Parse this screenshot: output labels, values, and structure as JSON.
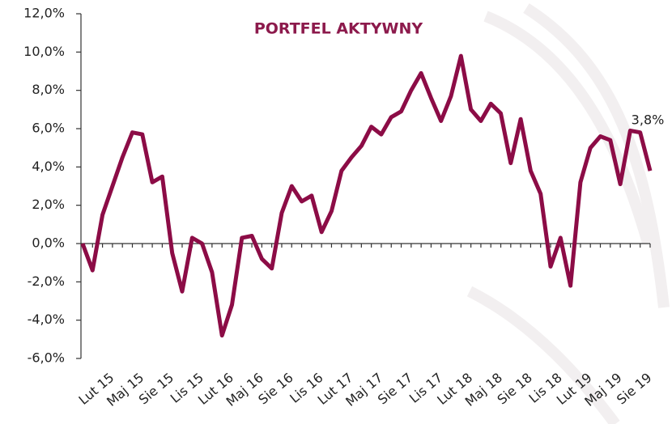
{
  "chart_data": {
    "type": "line",
    "title": "PORTFEL AKTYWNY",
    "categories": [
      null,
      null,
      null,
      "Lut 15",
      null,
      null,
      "Maj 15",
      null,
      null,
      "Sie 15",
      null,
      null,
      "Lis 15",
      null,
      null,
      "Lut 16",
      null,
      null,
      "Maj 16",
      null,
      null,
      "Sie 16",
      null,
      null,
      "Lis 16",
      null,
      null,
      "Lut 17",
      null,
      null,
      "Maj 17",
      null,
      null,
      "Sie 17",
      null,
      null,
      "Lis 17",
      null,
      null,
      "Lut 18",
      null,
      null,
      "Maj 18",
      null,
      null,
      "Sie 18",
      null,
      null,
      "Lis 18",
      null,
      null,
      "Lut 19",
      null,
      null,
      "Maj 19",
      null,
      null,
      "Sie 19"
    ],
    "series": [
      {
        "color": "#8c0c46",
        "values": [
          0.0,
          -1.4,
          1.5,
          3.0,
          4.5,
          5.8,
          5.7,
          3.2,
          3.5,
          -0.5,
          -2.5,
          0.3,
          0.0,
          -1.5,
          -4.8,
          -3.2,
          0.3,
          0.4,
          -0.8,
          -1.3,
          1.6,
          3.0,
          2.2,
          2.5,
          0.6,
          1.7,
          3.8,
          4.5,
          5.1,
          6.1,
          5.7,
          6.6,
          6.9,
          8.0,
          8.9,
          7.6,
          6.4,
          7.7,
          9.8,
          7.0,
          6.4,
          7.3,
          6.8,
          4.2,
          6.5,
          3.8,
          2.6,
          -1.2,
          0.3,
          -2.2,
          3.2,
          5.0,
          5.6,
          5.4,
          3.1,
          5.9,
          5.8,
          3.8
        ],
        "value_labels": [
          null,
          null,
          null,
          null,
          null,
          null,
          null,
          null,
          null,
          null,
          null,
          null,
          null,
          null,
          null,
          null,
          null,
          null,
          null,
          null,
          null,
          null,
          null,
          null,
          null,
          null,
          null,
          null,
          null,
          null,
          null,
          null,
          null,
          null,
          null,
          null,
          null,
          null,
          null,
          null,
          null,
          null,
          null,
          null,
          null,
          null,
          null,
          null,
          null,
          null,
          null,
          null,
          null,
          null,
          null,
          null,
          null,
          "3,8%"
        ]
      }
    ],
    "ylim": [
      -6,
      12
    ],
    "yticks": [
      {
        "value": -6,
        "label": "-6,0%"
      },
      {
        "value": -4,
        "label": "-4,0%"
      },
      {
        "value": -2,
        "label": "-2,0%"
      },
      {
        "value": 0,
        "label": "0,0%"
      },
      {
        "value": 2,
        "label": "2,0%"
      },
      {
        "value": 4,
        "label": "4,0%"
      },
      {
        "value": 6,
        "label": "6,0%"
      },
      {
        "value": 8,
        "label": "8,0%"
      },
      {
        "value": 10,
        "label": "10,0%"
      },
      {
        "value": 12,
        "label": "12,0%"
      }
    ],
    "grid": false
  }
}
